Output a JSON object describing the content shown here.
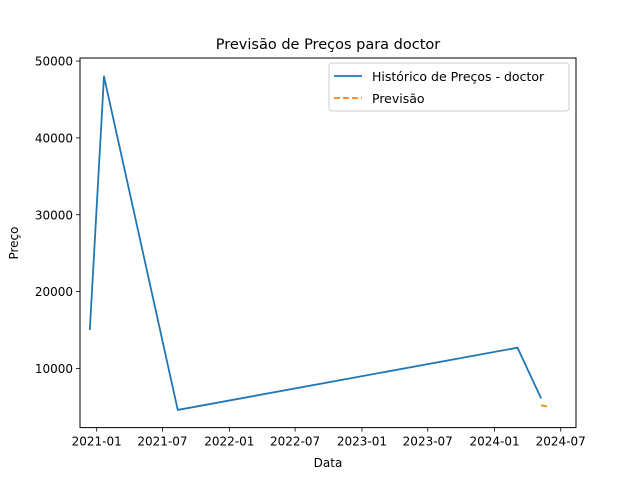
{
  "chart_data": {
    "type": "line",
    "title": "Previsão de Preços para doctor",
    "xlabel": "Data",
    "ylabel": "Preço",
    "x_ticks": [
      "2021-01",
      "2021-07",
      "2022-01",
      "2022-07",
      "2023-01",
      "2023-07",
      "2024-01",
      "2024-07"
    ],
    "y_ticks": [
      10000,
      20000,
      30000,
      40000,
      50000
    ],
    "y_tick_labels": [
      "10000",
      "20000",
      "30000",
      "40000",
      "50000"
    ],
    "xlim": [
      "2020-11-16",
      "2024-08-12"
    ],
    "ylim": [
      2300,
      50400
    ],
    "grid": false,
    "legend_position": "top-right",
    "series": [
      {
        "name": "Histórico de Preços - doctor",
        "style": "solid",
        "color": "#1f77b4",
        "x": [
          "2020-12-13",
          "2021-01-21",
          "2021-08-12",
          "2024-03-04",
          "2024-05-08"
        ],
        "y": [
          15000,
          48000,
          4600,
          12700,
          6100
        ]
      },
      {
        "name": "Previsão",
        "style": "dashed",
        "color": "#ff7f0e",
        "x": [
          "2024-05-08",
          "2024-05-30"
        ],
        "y": [
          5200,
          5000
        ]
      }
    ]
  }
}
